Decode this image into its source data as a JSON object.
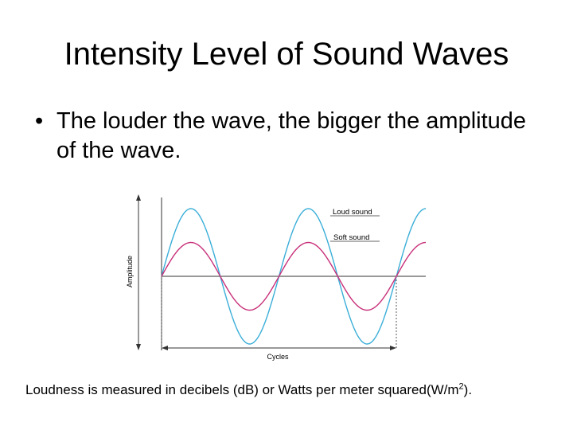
{
  "slide": {
    "title": "Intensity Level of Sound Waves",
    "bullets": [
      {
        "symbol": "•",
        "text": "The louder the wave, the bigger the amplitude of the wave."
      }
    ],
    "footnote": {
      "text_before": "Loudness is measured in decibels (d",
      "text_mid": "B) or Watts per meter squared(W/m",
      "superscript": "2",
      "text_after": ")."
    }
  },
  "diagram": {
    "y_axis_label": "Amplitude",
    "x_axis_label": "Cycles",
    "waves": [
      {
        "label": "Loud sound",
        "color": "#3aaed8",
        "relative_amplitude": 1.0,
        "cycles": 2.25
      },
      {
        "label": "Soft sound",
        "color": "#c8307a",
        "relative_amplitude": 0.5,
        "cycles": 2.25
      }
    ],
    "colors": {
      "axis": "#333333",
      "label_line": "#666666",
      "baseline": "#333333"
    }
  }
}
